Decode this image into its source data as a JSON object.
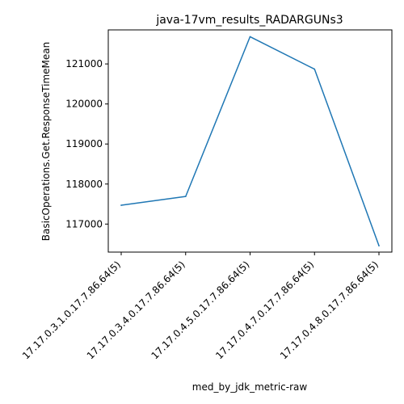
{
  "chart_data": {
    "type": "line",
    "title": "java-17vm_results_RADARGUNs3",
    "xlabel": "med_by_jdk_metric-raw",
    "ylabel": "BasicOperations.Get.ResponseTimeMean",
    "categories": [
      "17.17.0.3.1.0.17.7.86.64(5)",
      "17.17.0.3.4.0.17.7.86.64(5)",
      "17.17.0.4.5.0.17.7.86.64(5)",
      "17.17.0.4.7.0.17.7.86.64(5)",
      "17.17.0.4.8.0.17.7.86.64(5)"
    ],
    "series": [
      {
        "values": [
          117470,
          117690,
          121680,
          120870,
          116460
        ]
      }
    ],
    "y_ticks": [
      117000,
      118000,
      119000,
      120000,
      121000
    ],
    "ylim": [
      116300,
      121850
    ],
    "grid": false,
    "line_color": "#1f77b4"
  }
}
